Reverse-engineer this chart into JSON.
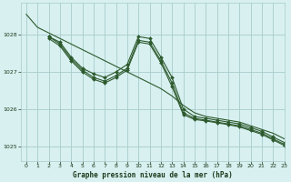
{
  "background_color": "#d8f0f0",
  "grid_color": "#a8cccc",
  "line_color": "#2d5a2d",
  "xlabel": "Graphe pression niveau de la mer (hPa)",
  "xlim": [
    -0.5,
    23
  ],
  "ylim": [
    1024.6,
    1028.85
  ],
  "yticks": [
    1025,
    1026,
    1027,
    1028
  ],
  "xticks": [
    0,
    1,
    2,
    3,
    4,
    5,
    6,
    7,
    8,
    9,
    10,
    11,
    12,
    13,
    14,
    15,
    16,
    17,
    18,
    19,
    20,
    21,
    22,
    23
  ],
  "series": [
    {
      "x": [
        0,
        1,
        2,
        3,
        4,
        5,
        6,
        7,
        8,
        9,
        10,
        11,
        12,
        13,
        14,
        15,
        16,
        17,
        18,
        19,
        20,
        21,
        22,
        23
      ],
      "y": [
        1028.55,
        1028.2,
        1028.05,
        1027.9,
        1027.75,
        1027.6,
        1027.45,
        1027.3,
        1027.15,
        1027.0,
        1026.85,
        1026.7,
        1026.55,
        1026.35,
        1026.1,
        1025.9,
        1025.8,
        1025.75,
        1025.7,
        1025.65,
        1025.55,
        1025.45,
        1025.35,
        1025.2
      ],
      "has_markers": false
    },
    {
      "x": [
        2,
        3,
        4,
        5,
        6,
        7,
        8,
        9,
        10,
        11,
        12,
        13,
        14,
        15,
        16,
        17,
        18,
        19,
        20,
        21,
        22,
        23
      ],
      "y": [
        1027.95,
        1027.8,
        1027.4,
        1027.1,
        1026.95,
        1026.85,
        1027.0,
        1027.2,
        1027.95,
        1027.9,
        1027.4,
        1026.85,
        1026.0,
        1025.8,
        1025.75,
        1025.7,
        1025.65,
        1025.6,
        1025.5,
        1025.4,
        1025.25,
        1025.1
      ],
      "has_markers": true
    },
    {
      "x": [
        2,
        3,
        4,
        5,
        6,
        7,
        8,
        9,
        10,
        11,
        12,
        13,
        14,
        15,
        16,
        17,
        18,
        19,
        20,
        21,
        22,
        23
      ],
      "y": [
        1027.95,
        1027.75,
        1027.35,
        1027.05,
        1026.85,
        1026.75,
        1026.9,
        1027.1,
        1027.85,
        1027.8,
        1027.3,
        1026.7,
        1025.9,
        1025.75,
        1025.7,
        1025.65,
        1025.6,
        1025.55,
        1025.45,
        1025.35,
        1025.2,
        1025.05
      ],
      "has_markers": true
    },
    {
      "x": [
        2,
        3,
        4,
        5,
        6,
        7,
        8,
        9,
        10,
        11,
        12,
        13,
        14,
        15,
        16,
        17,
        18,
        19,
        20,
        21,
        22,
        23
      ],
      "y": [
        1027.9,
        1027.7,
        1027.3,
        1027.0,
        1026.8,
        1026.7,
        1026.85,
        1027.05,
        1027.8,
        1027.75,
        1027.25,
        1026.6,
        1025.85,
        1025.72,
        1025.68,
        1025.63,
        1025.58,
        1025.52,
        1025.42,
        1025.32,
        1025.17,
        1025.02
      ],
      "has_markers": true
    }
  ]
}
